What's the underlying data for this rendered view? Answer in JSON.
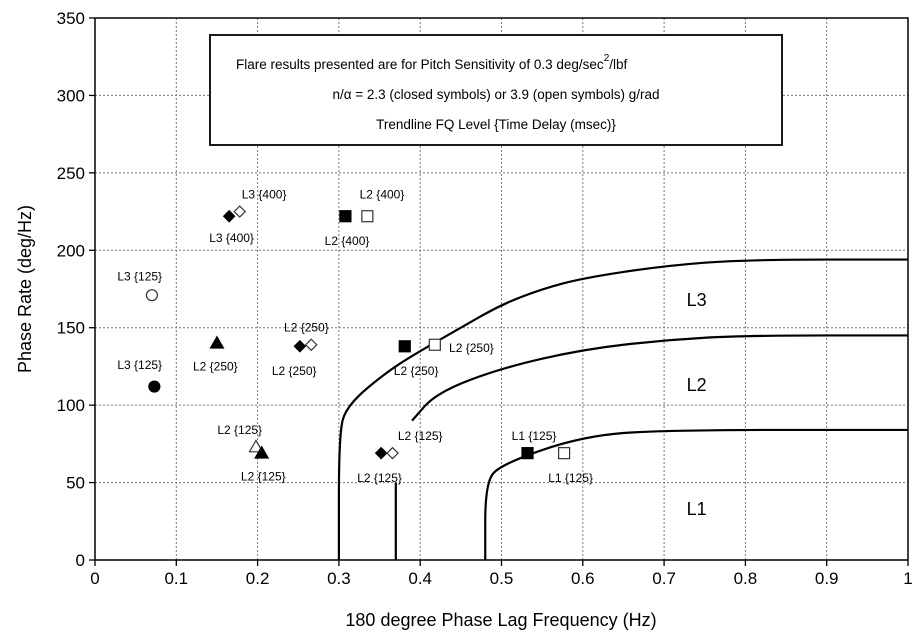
{
  "chart_data": {
    "type": "scatter",
    "xlabel": "180 degree Phase Lag Frequency (Hz)",
    "ylabel": "Phase Rate (deg/Hz)",
    "xlim": [
      0,
      1
    ],
    "ylim": [
      0,
      350
    ],
    "x_ticks": [
      "0",
      "0.1",
      "0.2",
      "0.3",
      "0.4",
      "0.5",
      "0.6",
      "0.7",
      "0.8",
      "0.9",
      "1"
    ],
    "y_ticks": [
      "0",
      "50",
      "100",
      "150",
      "200",
      "250",
      "300",
      "350"
    ],
    "grid": true,
    "legend_box": {
      "line1": "Flare results presented are for Pitch Sensitivity of  0.3 deg/sec",
      "line1_sup": "2",
      "line1_tail": "/lbf",
      "line2": "n/α = 2.3 (closed symbols) or 3.9 (open symbols) g/rad",
      "line3": "Trendline FQ Level  {Time Delay (msec)}"
    },
    "boundaries": [
      {
        "name": "L1",
        "points": [
          [
            0.48,
            0
          ],
          [
            0.48,
            50
          ],
          [
            0.5,
            62
          ],
          [
            0.6,
            80
          ],
          [
            0.7,
            84
          ],
          [
            1.0,
            84
          ]
        ]
      },
      {
        "name": "L2",
        "points": [
          [
            0.37,
            0
          ],
          [
            0.37,
            50
          ]
        ]
      },
      {
        "name": "L2",
        "points": [
          [
            0.39,
            90
          ],
          [
            0.42,
            108
          ],
          [
            0.5,
            124
          ],
          [
            0.6,
            136
          ],
          [
            0.7,
            142
          ],
          [
            0.8,
            145
          ],
          [
            1.0,
            145
          ]
        ]
      },
      {
        "name": "L3",
        "points": [
          [
            0.3,
            0
          ],
          [
            0.3,
            82
          ],
          [
            0.31,
            100
          ],
          [
            0.36,
            122
          ],
          [
            0.4,
            135
          ],
          [
            0.45,
            150
          ],
          [
            0.5,
            165
          ],
          [
            0.55,
            175
          ],
          [
            0.6,
            182
          ],
          [
            0.7,
            190
          ],
          [
            0.8,
            194
          ],
          [
            1.0,
            194
          ]
        ]
      }
    ],
    "region_labels": [
      {
        "text": "L3",
        "x": 0.74,
        "y": 168
      },
      {
        "text": "L2",
        "x": 0.74,
        "y": 113
      },
      {
        "text": "L1",
        "x": 0.74,
        "y": 33
      }
    ],
    "points": [
      {
        "x": 0.07,
        "y": 171,
        "marker": "circle",
        "filled": false,
        "label": "L3 {125}",
        "lx": 0.055,
        "ly": 183
      },
      {
        "x": 0.073,
        "y": 112,
        "marker": "circle",
        "filled": true,
        "label": "L3 {125}",
        "lx": 0.055,
        "ly": 126
      },
      {
        "x": 0.15,
        "y": 140,
        "marker": "triangle",
        "filled": true,
        "label": "L2 {250}",
        "lx": 0.148,
        "ly": 125
      },
      {
        "x": 0.198,
        "y": 73,
        "marker": "triangle",
        "filled": false,
        "label": "L2 {125}",
        "lx": 0.178,
        "ly": 84
      },
      {
        "x": 0.205,
        "y": 69,
        "marker": "triangle",
        "filled": true,
        "label": "L2 {125}",
        "lx": 0.207,
        "ly": 54
      },
      {
        "x": 0.252,
        "y": 138,
        "marker": "diamond",
        "filled": true,
        "label": "L2 {250}",
        "lx": 0.26,
        "ly": 150
      },
      {
        "x": 0.266,
        "y": 139,
        "marker": "diamond",
        "filled": false,
        "label": "L2 {250}",
        "lx": 0.245,
        "ly": 122
      },
      {
        "x": 0.165,
        "y": 222,
        "marker": "diamond",
        "filled": true,
        "label": "L3 {400}",
        "lx": 0.168,
        "ly": 208
      },
      {
        "x": 0.178,
        "y": 225,
        "marker": "diamond",
        "filled": false,
        "label": "L3 {400}",
        "lx": 0.208,
        "ly": 236
      },
      {
        "x": 0.308,
        "y": 222,
        "marker": "square",
        "filled": true,
        "label": "L2 {400}",
        "lx": 0.31,
        "ly": 206
      },
      {
        "x": 0.335,
        "y": 222,
        "marker": "square",
        "filled": false,
        "label": "L2 {400}",
        "lx": 0.353,
        "ly": 236
      },
      {
        "x": 0.381,
        "y": 138,
        "marker": "square",
        "filled": true,
        "label": "L2 {250}",
        "lx": 0.395,
        "ly": 122
      },
      {
        "x": 0.418,
        "y": 139,
        "marker": "square",
        "filled": false,
        "label": "L2 {250}",
        "lx": 0.463,
        "ly": 137
      },
      {
        "x": 0.352,
        "y": 69,
        "marker": "diamond",
        "filled": true,
        "label": "L2 {125}",
        "lx": 0.35,
        "ly": 53
      },
      {
        "x": 0.366,
        "y": 69,
        "marker": "diamond",
        "filled": false,
        "label": "L2 {125}",
        "lx": 0.4,
        "ly": 80
      },
      {
        "x": 0.532,
        "y": 69,
        "marker": "square",
        "filled": true,
        "label": "L1 {125}",
        "lx": 0.54,
        "ly": 80
      },
      {
        "x": 0.577,
        "y": 69,
        "marker": "square",
        "filled": false,
        "label": "L1 {125}",
        "lx": 0.585,
        "ly": 53
      }
    ]
  }
}
